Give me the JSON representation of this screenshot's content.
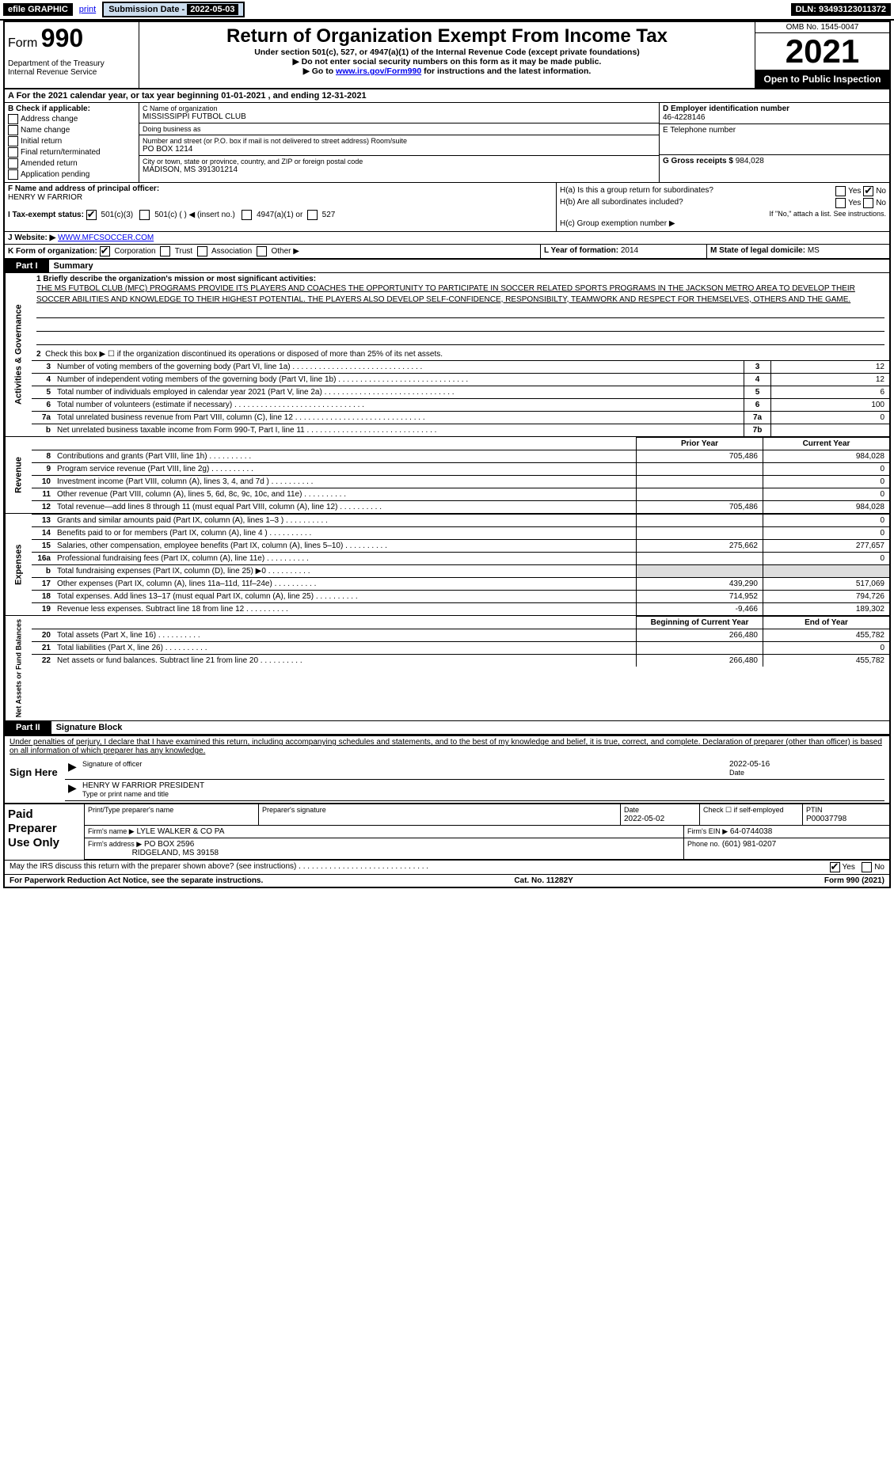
{
  "topbar": {
    "efile": "efile GRAPHIC",
    "print": "print",
    "sub_label": "Submission Date - ",
    "sub_date": "2022-05-03",
    "dln": "DLN: 93493123011372"
  },
  "hdr": {
    "form_word": "Form",
    "form_num": "990",
    "title": "Return of Organization Exempt From Income Tax",
    "sub1": "Under section 501(c), 527, or 4947(a)(1) of the Internal Revenue Code (except private foundations)",
    "sub2": "▶ Do not enter social security numbers on this form as it may be made public.",
    "sub3_pre": "▶ Go to ",
    "sub3_link": "www.irs.gov/Form990",
    "sub3_post": " for instructions and the latest information.",
    "dept": "Department of the Treasury\nInternal Revenue Service",
    "omb": "OMB No. 1545-0047",
    "year": "2021",
    "inspect": "Open to Public Inspection"
  },
  "rowA": "A For the 2021 calendar year, or tax year beginning 01-01-2021   , and ending 12-31-2021",
  "colB": {
    "head": "B Check if applicable:",
    "items": [
      "Address change",
      "Name change",
      "Initial return",
      "Final return/terminated",
      "Amended return",
      "Application pending"
    ]
  },
  "colC": {
    "name_lbl": "C Name of organization",
    "name": "MISSISSIPPI FUTBOL CLUB",
    "dba_lbl": "Doing business as",
    "dba": "",
    "addr_lbl": "Number and street (or P.O. box if mail is not delivered to street address)    Room/suite",
    "addr": "PO BOX 1214",
    "city_lbl": "City or town, state or province, country, and ZIP or foreign postal code",
    "city": "MADISON, MS  391301214"
  },
  "colD": {
    "ein_lbl": "D Employer identification number",
    "ein": "46-4228146",
    "tel_lbl": "E Telephone number",
    "tel": "",
    "gross_lbl": "G Gross receipts $",
    "gross": "984,028"
  },
  "rowF": {
    "lbl": "F Name and address of principal officer:",
    "name": "HENRY W FARRIOR"
  },
  "rowH": {
    "a": "H(a)  Is this a group return for subordinates?",
    "a_yes": "Yes",
    "a_no": "No",
    "b": "H(b)  Are all subordinates included?",
    "b_yes": "Yes",
    "b_no": "No",
    "b_note": "If \"No,\" attach a list. See instructions.",
    "c": "H(c)  Group exemption number ▶"
  },
  "rowI": {
    "lbl": "I  Tax-exempt status:",
    "o1": "501(c)(3)",
    "o2": "501(c) (   ) ◀ (insert no.)",
    "o3": "4947(a)(1) or",
    "o4": "527"
  },
  "rowJ": {
    "lbl": "J  Website: ▶",
    "val": "WWW.MFCSOCCER.COM"
  },
  "rowK": {
    "lbl": "K Form of organization:",
    "opts": [
      "Corporation",
      "Trust",
      "Association",
      "Other ▶"
    ]
  },
  "rowL": {
    "lbl": "L Year of formation:",
    "val": "2014"
  },
  "rowM": {
    "lbl": "M State of legal domicile:",
    "val": "MS"
  },
  "part1_tag": "Part I",
  "part1_title": "Summary",
  "mission_lbl": "1  Briefly describe the organization's mission or most significant activities:",
  "mission": "THE MS FUTBOL CLUB (MFC) PROGRAMS PROVIDE ITS PLAYERS AND COACHES THE OPPORTUNITY TO PARTICIPATE IN SOCCER RELATED SPORTS PROGRAMS IN THE JACKSON METRO AREA TO DEVELOP THEIR SOCCER ABILITIES AND KNOWLEDGE TO THEIR HIGHEST POTENTIAL. THE PLAYERS ALSO DEVELOP SELF-CONFIDENCE, RESPONSIBILTY, TEAMWORK AND RESPECT FOR THEMSELVES, OTHERS AND THE GAME.",
  "line2": "Check this box ▶ ☐ if the organization discontinued its operations or disposed of more than 25% of its net assets.",
  "gov_lines": [
    {
      "n": "3",
      "d": "Number of voting members of the governing body (Part VI, line 1a)",
      "box": "3",
      "v": "12"
    },
    {
      "n": "4",
      "d": "Number of independent voting members of the governing body (Part VI, line 1b)",
      "box": "4",
      "v": "12"
    },
    {
      "n": "5",
      "d": "Total number of individuals employed in calendar year 2021 (Part V, line 2a)",
      "box": "5",
      "v": "6"
    },
    {
      "n": "6",
      "d": "Total number of volunteers (estimate if necessary)",
      "box": "6",
      "v": "100"
    },
    {
      "n": "7a",
      "d": "Total unrelated business revenue from Part VIII, column (C), line 12",
      "box": "7a",
      "v": "0"
    },
    {
      "n": "b",
      "d": "Net unrelated business taxable income from Form 990-T, Part I, line 11",
      "box": "7b",
      "v": ""
    }
  ],
  "col_prior": "Prior Year",
  "col_current": "Current Year",
  "rev_lines": [
    {
      "n": "8",
      "d": "Contributions and grants (Part VIII, line 1h)",
      "p": "705,486",
      "c": "984,028"
    },
    {
      "n": "9",
      "d": "Program service revenue (Part VIII, line 2g)",
      "p": "",
      "c": "0"
    },
    {
      "n": "10",
      "d": "Investment income (Part VIII, column (A), lines 3, 4, and 7d )",
      "p": "",
      "c": "0"
    },
    {
      "n": "11",
      "d": "Other revenue (Part VIII, column (A), lines 5, 6d, 8c, 9c, 10c, and 11e)",
      "p": "",
      "c": "0"
    },
    {
      "n": "12",
      "d": "Total revenue—add lines 8 through 11 (must equal Part VIII, column (A), line 12)",
      "p": "705,486",
      "c": "984,028"
    }
  ],
  "exp_lines": [
    {
      "n": "13",
      "d": "Grants and similar amounts paid (Part IX, column (A), lines 1–3 )",
      "p": "",
      "c": "0"
    },
    {
      "n": "14",
      "d": "Benefits paid to or for members (Part IX, column (A), line 4 )",
      "p": "",
      "c": "0"
    },
    {
      "n": "15",
      "d": "Salaries, other compensation, employee benefits (Part IX, column (A), lines 5–10)",
      "p": "275,662",
      "c": "277,657"
    },
    {
      "n": "16a",
      "d": "Professional fundraising fees (Part IX, column (A), line 11e)",
      "p": "",
      "c": "0"
    },
    {
      "n": "b",
      "d": "Total fundraising expenses (Part IX, column (D), line 25) ▶0",
      "p": "",
      "c": "",
      "shade": true
    },
    {
      "n": "17",
      "d": "Other expenses (Part IX, column (A), lines 11a–11d, 11f–24e)",
      "p": "439,290",
      "c": "517,069"
    },
    {
      "n": "18",
      "d": "Total expenses. Add lines 13–17 (must equal Part IX, column (A), line 25)",
      "p": "714,952",
      "c": "794,726"
    },
    {
      "n": "19",
      "d": "Revenue less expenses. Subtract line 18 from line 12",
      "p": "-9,466",
      "c": "189,302"
    }
  ],
  "col_begin": "Beginning of Current Year",
  "col_end": "End of Year",
  "net_lines": [
    {
      "n": "20",
      "d": "Total assets (Part X, line 16)",
      "p": "266,480",
      "c": "455,782"
    },
    {
      "n": "21",
      "d": "Total liabilities (Part X, line 26)",
      "p": "",
      "c": "0"
    },
    {
      "n": "22",
      "d": "Net assets or fund balances. Subtract line 21 from line 20",
      "p": "266,480",
      "c": "455,782"
    }
  ],
  "vl_gov": "Activities & Governance",
  "vl_rev": "Revenue",
  "vl_exp": "Expenses",
  "vl_net": "Net Assets or Fund Balances",
  "part2_tag": "Part II",
  "part2_title": "Signature Block",
  "sig_decl": "Under penalties of perjury, I declare that I have examined this return, including accompanying schedules and statements, and to the best of my knowledge and belief, it is true, correct, and complete. Declaration of preparer (other than officer) is based on all information of which preparer has any knowledge.",
  "sign_here": "Sign Here",
  "sig_date": "2022-05-16",
  "sig_of": "Signature of officer",
  "sig_date_lbl": "Date",
  "sig_name": "HENRY W FARRIOR  PRESIDENT",
  "sig_name_lbl": "Type or print name and title",
  "prep_lbl": "Paid Preparer Use Only",
  "prep_r1": {
    "c1": "Print/Type preparer's name",
    "c2": "Preparer's signature",
    "c3_lbl": "Date",
    "c3": "2022-05-02",
    "c4": "Check ☐ if self-employed",
    "c5_lbl": "PTIN",
    "c5": "P00037798"
  },
  "prep_r2": {
    "c1_lbl": "Firm's name  ▶",
    "c1": "LYLE WALKER & CO PA",
    "c2_lbl": "Firm's EIN ▶",
    "c2": "64-0744038"
  },
  "prep_r3": {
    "c1_lbl": "Firm's address ▶",
    "c1": "PO BOX 2596",
    "c1b": "RIDGELAND, MS  39158",
    "c2_lbl": "Phone no.",
    "c2": "(601) 981-0207"
  },
  "discuss": "May the IRS discuss this return with the preparer shown above? (see instructions)",
  "discuss_yes": "Yes",
  "discuss_no": "No",
  "foot1": "For Paperwork Reduction Act Notice, see the separate instructions.",
  "foot2": "Cat. No. 11282Y",
  "foot3": "Form 990 (2021)"
}
